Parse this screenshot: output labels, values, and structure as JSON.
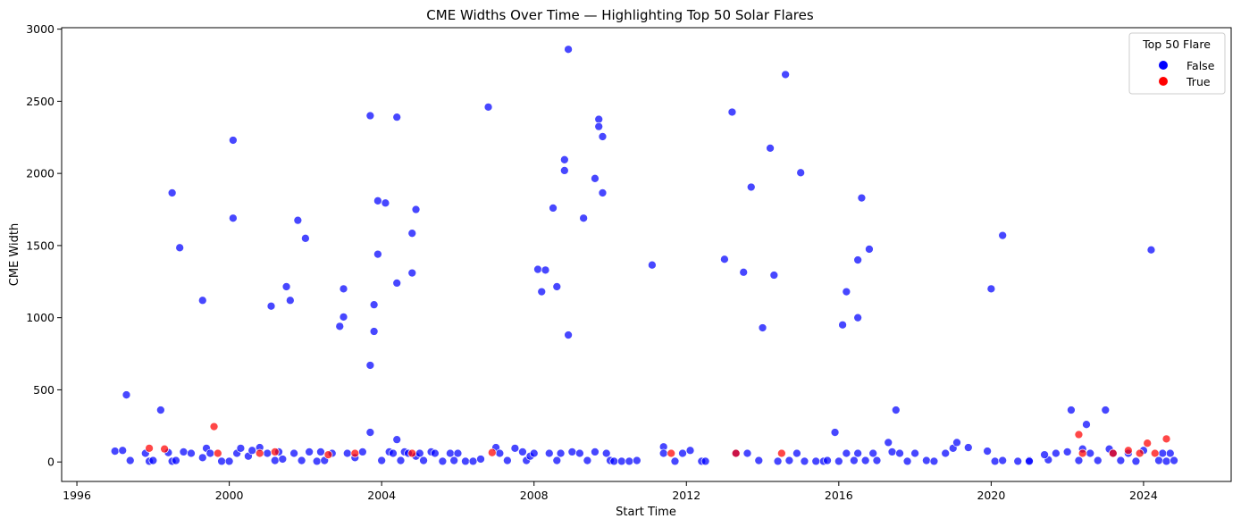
{
  "chart_data": {
    "type": "scatter",
    "title": "CME Widths Over Time — Highlighting Top 50 Solar Flares",
    "xlabel": "Start Time",
    "ylabel": "CME Width",
    "xlim": [
      1995.6,
      2026.3
    ],
    "ylim": [
      -135,
      3010
    ],
    "x_ticks": [
      1996,
      2000,
      2004,
      2008,
      2012,
      2016,
      2020,
      2024
    ],
    "y_ticks": [
      0,
      500,
      1000,
      1500,
      2000,
      2500,
      3000
    ],
    "grid": false,
    "legend": {
      "title": "Top 50 Flare",
      "placement": "top-right",
      "entries": [
        {
          "label": "False",
          "color": "#0000ff"
        },
        {
          "label": "True",
          "color": "#ff0000"
        }
      ]
    },
    "series": [
      {
        "name": "False",
        "color": "#0000ff",
        "points": [
          [
            1997.0,
            75
          ],
          [
            1997.2,
            80
          ],
          [
            1997.3,
            465
          ],
          [
            1997.4,
            10
          ],
          [
            1997.8,
            60
          ],
          [
            1997.9,
            5
          ],
          [
            1998.0,
            10
          ],
          [
            1998.2,
            360
          ],
          [
            1998.4,
            65
          ],
          [
            1998.5,
            1865
          ],
          [
            1998.5,
            5
          ],
          [
            1998.6,
            10
          ],
          [
            1998.7,
            1485
          ],
          [
            1998.8,
            70
          ],
          [
            1999.0,
            60
          ],
          [
            1999.3,
            1120
          ],
          [
            1999.3,
            30
          ],
          [
            1999.4,
            95
          ],
          [
            1999.5,
            60
          ],
          [
            1999.8,
            5
          ],
          [
            2000.0,
            5
          ],
          [
            2000.1,
            2230
          ],
          [
            2000.1,
            1690
          ],
          [
            2000.2,
            60
          ],
          [
            2000.3,
            95
          ],
          [
            2000.5,
            40
          ],
          [
            2000.6,
            80
          ],
          [
            2000.8,
            100
          ],
          [
            2001.0,
            60
          ],
          [
            2001.1,
            1080
          ],
          [
            2001.2,
            10
          ],
          [
            2001.3,
            70
          ],
          [
            2001.4,
            20
          ],
          [
            2001.5,
            1215
          ],
          [
            2001.6,
            1120
          ],
          [
            2001.7,
            60
          ],
          [
            2001.8,
            1675
          ],
          [
            2001.9,
            10
          ],
          [
            2002.0,
            1550
          ],
          [
            2002.1,
            70
          ],
          [
            2002.3,
            5
          ],
          [
            2002.4,
            70
          ],
          [
            2002.5,
            10
          ],
          [
            2002.7,
            60
          ],
          [
            2002.9,
            940
          ],
          [
            2003.0,
            1200
          ],
          [
            2003.0,
            1005
          ],
          [
            2003.1,
            60
          ],
          [
            2003.3,
            30
          ],
          [
            2003.5,
            70
          ],
          [
            2003.7,
            670
          ],
          [
            2003.7,
            2400
          ],
          [
            2003.7,
            205
          ],
          [
            2003.8,
            1090
          ],
          [
            2003.8,
            905
          ],
          [
            2003.9,
            1810
          ],
          [
            2003.9,
            1440
          ],
          [
            2004.0,
            10
          ],
          [
            2004.1,
            1795
          ],
          [
            2004.2,
            70
          ],
          [
            2004.3,
            60
          ],
          [
            2004.4,
            155
          ],
          [
            2004.4,
            1240
          ],
          [
            2004.4,
            2390
          ],
          [
            2004.5,
            10
          ],
          [
            2004.6,
            70
          ],
          [
            2004.7,
            60
          ],
          [
            2004.8,
            1585
          ],
          [
            2004.8,
            1310
          ],
          [
            2004.9,
            1750
          ],
          [
            2004.9,
            40
          ],
          [
            2005.0,
            60
          ],
          [
            2005.1,
            10
          ],
          [
            2005.3,
            70
          ],
          [
            2005.4,
            60
          ],
          [
            2005.6,
            5
          ],
          [
            2005.8,
            60
          ],
          [
            2005.9,
            10
          ],
          [
            2006.0,
            60
          ],
          [
            2006.2,
            5
          ],
          [
            2006.4,
            5
          ],
          [
            2006.6,
            20
          ],
          [
            2006.8,
            2460
          ],
          [
            2007.0,
            100
          ],
          [
            2007.1,
            60
          ],
          [
            2007.3,
            10
          ],
          [
            2007.5,
            95
          ],
          [
            2007.7,
            70
          ],
          [
            2007.8,
            10
          ],
          [
            2007.9,
            40
          ],
          [
            2008.0,
            60
          ],
          [
            2008.1,
            1335
          ],
          [
            2008.2,
            1180
          ],
          [
            2008.3,
            1330
          ],
          [
            2008.4,
            60
          ],
          [
            2008.5,
            1760
          ],
          [
            2008.6,
            1215
          ],
          [
            2008.6,
            10
          ],
          [
            2008.7,
            60
          ],
          [
            2008.8,
            2095
          ],
          [
            2008.8,
            2020
          ],
          [
            2008.9,
            880
          ],
          [
            2008.9,
            2860
          ],
          [
            2009.0,
            70
          ],
          [
            2009.2,
            60
          ],
          [
            2009.3,
            1690
          ],
          [
            2009.4,
            10
          ],
          [
            2009.6,
            1965
          ],
          [
            2009.6,
            70
          ],
          [
            2009.7,
            2375
          ],
          [
            2009.7,
            2325
          ],
          [
            2009.8,
            2255
          ],
          [
            2009.8,
            1865
          ],
          [
            2009.9,
            60
          ],
          [
            2010.0,
            10
          ],
          [
            2010.1,
            5
          ],
          [
            2010.3,
            5
          ],
          [
            2010.5,
            5
          ],
          [
            2010.7,
            10
          ],
          [
            2011.1,
            1365
          ],
          [
            2011.4,
            105
          ],
          [
            2011.4,
            60
          ],
          [
            2011.7,
            5
          ],
          [
            2011.9,
            60
          ],
          [
            2012.1,
            80
          ],
          [
            2012.4,
            5
          ],
          [
            2012.5,
            5
          ],
          [
            2013.0,
            1405
          ],
          [
            2013.2,
            2425
          ],
          [
            2013.3,
            60
          ],
          [
            2013.5,
            1315
          ],
          [
            2013.6,
            60
          ],
          [
            2013.7,
            1905
          ],
          [
            2013.9,
            10
          ],
          [
            2014.0,
            930
          ],
          [
            2014.2,
            2175
          ],
          [
            2014.3,
            1295
          ],
          [
            2014.4,
            5
          ],
          [
            2014.6,
            2685
          ],
          [
            2014.7,
            10
          ],
          [
            2014.9,
            60
          ],
          [
            2015.0,
            2005
          ],
          [
            2015.1,
            5
          ],
          [
            2015.4,
            5
          ],
          [
            2015.6,
            5
          ],
          [
            2015.7,
            10
          ],
          [
            2015.9,
            205
          ],
          [
            2016.0,
            5
          ],
          [
            2016.1,
            950
          ],
          [
            2016.2,
            1180
          ],
          [
            2016.2,
            60
          ],
          [
            2016.4,
            10
          ],
          [
            2016.5,
            1000
          ],
          [
            2016.5,
            1400
          ],
          [
            2016.5,
            60
          ],
          [
            2016.6,
            1830
          ],
          [
            2016.7,
            10
          ],
          [
            2016.8,
            1475
          ],
          [
            2016.9,
            60
          ],
          [
            2017.0,
            10
          ],
          [
            2017.3,
            135
          ],
          [
            2017.4,
            70
          ],
          [
            2017.5,
            360
          ],
          [
            2017.6,
            60
          ],
          [
            2017.8,
            5
          ],
          [
            2018.0,
            60
          ],
          [
            2018.3,
            10
          ],
          [
            2018.5,
            5
          ],
          [
            2018.8,
            60
          ],
          [
            2019.0,
            95
          ],
          [
            2019.1,
            135
          ],
          [
            2019.4,
            100
          ],
          [
            2019.9,
            75
          ],
          [
            2020.0,
            1200
          ],
          [
            2020.1,
            5
          ],
          [
            2020.3,
            1570
          ],
          [
            2020.3,
            10
          ],
          [
            2020.7,
            5
          ],
          [
            2021.0,
            10
          ],
          [
            2021.5,
            15
          ],
          [
            2021.0,
            5
          ],
          [
            2021.4,
            50
          ],
          [
            2021.7,
            60
          ],
          [
            2022.0,
            70
          ],
          [
            2022.1,
            360
          ],
          [
            2022.3,
            10
          ],
          [
            2022.4,
            90
          ],
          [
            2022.5,
            260
          ],
          [
            2022.6,
            60
          ],
          [
            2022.8,
            10
          ],
          [
            2023.0,
            360
          ],
          [
            2023.1,
            90
          ],
          [
            2023.2,
            60
          ],
          [
            2023.4,
            10
          ],
          [
            2023.6,
            60
          ],
          [
            2023.8,
            5
          ],
          [
            2024.0,
            80
          ],
          [
            2024.2,
            1470
          ],
          [
            2024.4,
            10
          ],
          [
            2024.5,
            60
          ],
          [
            2024.6,
            5
          ],
          [
            2024.7,
            60
          ],
          [
            2024.8,
            10
          ]
        ]
      },
      {
        "name": "True",
        "color": "#ff0000",
        "points": [
          [
            1997.9,
            95
          ],
          [
            1998.3,
            90
          ],
          [
            1999.6,
            245
          ],
          [
            1999.7,
            60
          ],
          [
            2000.8,
            60
          ],
          [
            2001.2,
            70
          ],
          [
            2002.6,
            50
          ],
          [
            2003.3,
            60
          ],
          [
            2004.8,
            60
          ],
          [
            2006.9,
            65
          ],
          [
            2011.6,
            60
          ],
          [
            2013.3,
            60
          ],
          [
            2014.5,
            60
          ],
          [
            2022.3,
            190
          ],
          [
            2022.4,
            60
          ],
          [
            2023.2,
            60
          ],
          [
            2023.6,
            80
          ],
          [
            2023.9,
            60
          ],
          [
            2024.1,
            130
          ],
          [
            2024.3,
            60
          ],
          [
            2024.6,
            160
          ]
        ]
      }
    ]
  }
}
